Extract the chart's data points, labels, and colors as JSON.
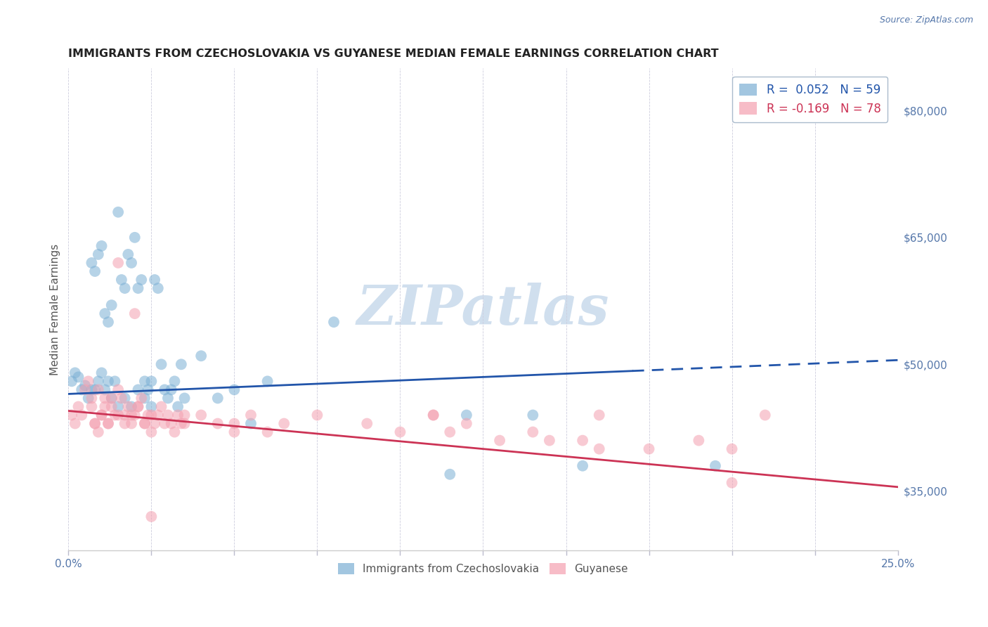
{
  "title": "IMMIGRANTS FROM CZECHOSLOVAKIA VS GUYANESE MEDIAN FEMALE EARNINGS CORRELATION CHART",
  "source": "Source: ZipAtlas.com",
  "ylabel": "Median Female Earnings",
  "xlim": [
    0.0,
    0.25
  ],
  "ylim": [
    28000,
    85000
  ],
  "yticks": [
    35000,
    50000,
    65000,
    80000
  ],
  "ytick_labels": [
    "$35,000",
    "$50,000",
    "$65,000",
    "$80,000"
  ],
  "xtick_positions": [
    0.0,
    0.025,
    0.05,
    0.075,
    0.1,
    0.125,
    0.15,
    0.175,
    0.2,
    0.225,
    0.25
  ],
  "xtick_labels_show": [
    "0.0%",
    "",
    "",
    "",
    "",
    "",
    "",
    "",
    "",
    "",
    "25.0%"
  ],
  "blue_color": "#7BAFD4",
  "pink_color": "#F4A0B0",
  "blue_line_color": "#2255AA",
  "pink_line_color": "#CC3355",
  "blue_label": "Immigrants from Czechoslovakia",
  "pink_label": "Guyanese",
  "blue_R": 0.052,
  "blue_N": 59,
  "pink_R": -0.169,
  "pink_N": 78,
  "watermark": "ZIPatlas",
  "watermark_color": "#D0DFEE",
  "grid_color": "#CCCCDD",
  "title_color": "#222222",
  "axis_label_color": "#555555",
  "tick_label_color": "#5577AA",
  "legend_border_color": "#AABBCC",
  "blue_trend_x": [
    0.0,
    0.25
  ],
  "blue_trend_y": [
    46500,
    50500
  ],
  "pink_trend_x": [
    0.0,
    0.25
  ],
  "pink_trend_y": [
    44500,
    35500
  ],
  "blue_scatter_x": [
    0.001,
    0.002,
    0.003,
    0.004,
    0.005,
    0.006,
    0.007,
    0.008,
    0.009,
    0.01,
    0.011,
    0.012,
    0.013,
    0.014,
    0.015,
    0.016,
    0.017,
    0.018,
    0.019,
    0.02,
    0.021,
    0.022,
    0.023,
    0.024,
    0.025,
    0.026,
    0.027,
    0.028,
    0.029,
    0.03,
    0.031,
    0.032,
    0.033,
    0.034,
    0.035,
    0.04,
    0.045,
    0.05,
    0.055,
    0.06,
    0.007,
    0.009,
    0.011,
    0.013,
    0.015,
    0.017,
    0.019,
    0.021,
    0.023,
    0.025,
    0.008,
    0.01,
    0.012,
    0.08,
    0.12,
    0.14,
    0.115,
    0.155,
    0.195
  ],
  "blue_scatter_y": [
    48000,
    49000,
    48500,
    47000,
    47500,
    46000,
    62000,
    61000,
    63000,
    64000,
    56000,
    55000,
    57000,
    48000,
    68000,
    60000,
    59000,
    63000,
    62000,
    65000,
    59000,
    60000,
    48000,
    47000,
    48000,
    60000,
    59000,
    50000,
    47000,
    46000,
    47000,
    48000,
    45000,
    50000,
    46000,
    51000,
    46000,
    47000,
    43000,
    48000,
    47000,
    48000,
    47000,
    46000,
    45000,
    46000,
    45000,
    47000,
    46000,
    45000,
    47000,
    49000,
    48000,
    55000,
    44000,
    44000,
    37000,
    38000,
    38000
  ],
  "pink_scatter_x": [
    0.001,
    0.002,
    0.003,
    0.004,
    0.005,
    0.006,
    0.007,
    0.008,
    0.009,
    0.01,
    0.011,
    0.012,
    0.013,
    0.014,
    0.015,
    0.016,
    0.017,
    0.018,
    0.019,
    0.02,
    0.021,
    0.022,
    0.023,
    0.024,
    0.025,
    0.026,
    0.027,
    0.028,
    0.029,
    0.03,
    0.031,
    0.032,
    0.033,
    0.034,
    0.035,
    0.04,
    0.045,
    0.05,
    0.055,
    0.06,
    0.007,
    0.009,
    0.011,
    0.013,
    0.015,
    0.017,
    0.019,
    0.021,
    0.023,
    0.025,
    0.008,
    0.01,
    0.012,
    0.035,
    0.05,
    0.065,
    0.075,
    0.09,
    0.1,
    0.11,
    0.12,
    0.14,
    0.155,
    0.175,
    0.19,
    0.2,
    0.21,
    0.115,
    0.13,
    0.145,
    0.16,
    0.015,
    0.02,
    0.025,
    0.11,
    0.16,
    0.2
  ],
  "pink_scatter_y": [
    44000,
    43000,
    45000,
    44000,
    47000,
    48000,
    45000,
    43000,
    42000,
    44000,
    45000,
    43000,
    46000,
    44000,
    47000,
    46000,
    44000,
    45000,
    43000,
    44000,
    45000,
    46000,
    43000,
    44000,
    42000,
    43000,
    44000,
    45000,
    43000,
    44000,
    43000,
    42000,
    44000,
    43000,
    43000,
    44000,
    43000,
    43000,
    44000,
    42000,
    46000,
    47000,
    46000,
    45000,
    44000,
    43000,
    44000,
    45000,
    43000,
    44000,
    43000,
    44000,
    43000,
    44000,
    42000,
    43000,
    44000,
    43000,
    42000,
    44000,
    43000,
    42000,
    41000,
    40000,
    41000,
    40000,
    44000,
    42000,
    41000,
    41000,
    40000,
    62000,
    56000,
    32000,
    44000,
    44000,
    36000
  ]
}
